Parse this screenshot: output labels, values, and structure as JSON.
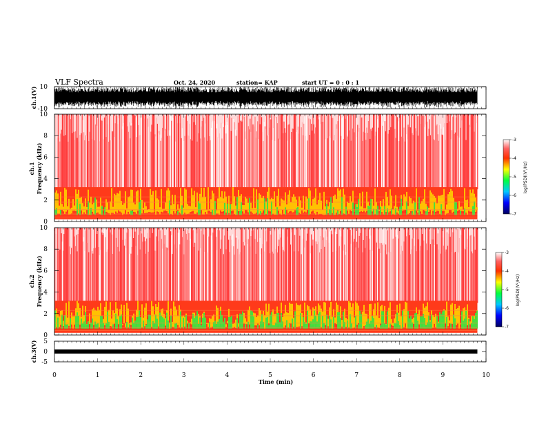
{
  "header": {
    "title": "VLF Spectra",
    "date": "Oct. 24, 2020",
    "station": "station= KAP",
    "start": "start  UT =   0 : 0  : 1"
  },
  "chart_data": {
    "type": "heatmap",
    "xlabel": "Time (min)",
    "xlim": [
      0,
      10
    ],
    "x_ticks": [
      "0",
      "1",
      "2",
      "3",
      "4",
      "5",
      "6",
      "7",
      "8",
      "9",
      "10"
    ],
    "panels": {
      "ch1_wave": {
        "ylabel": "ch.1(V)",
        "ylim": [
          -10,
          10
        ],
        "y_ticks": [
          "10",
          "-10"
        ]
      },
      "ch1_spec": {
        "ylabel_top": "ch.1",
        "ylabel": "Frequency (kHz)",
        "ylim": [
          0,
          10
        ],
        "y_ticks": [
          "10",
          "8",
          "6",
          "4",
          "2",
          "0"
        ]
      },
      "ch2_spec": {
        "ylabel_top": "ch.2",
        "ylabel": "Frequency (kHz)",
        "ylim": [
          0,
          10
        ],
        "y_ticks": [
          "10",
          "8",
          "6",
          "4",
          "2",
          "0"
        ]
      },
      "ch3_wave": {
        "ylabel": "ch.3(V)",
        "ylim": [
          -5,
          5
        ],
        "y_ticks": [
          "5",
          "0",
          "-5"
        ]
      }
    },
    "colorbar": {
      "label": "log(PSD)(V²/Hz)",
      "range": [
        -7,
        -3
      ],
      "ticks": [
        "-3",
        "-4",
        "-5",
        "-6",
        "-7"
      ],
      "colors": [
        "#000070",
        "#0000ff",
        "#00c0ff",
        "#00ff60",
        "#ffff00",
        "#ff8000",
        "#ff0000",
        "#ffffff"
      ]
    },
    "data_end_min": 9.8
  }
}
